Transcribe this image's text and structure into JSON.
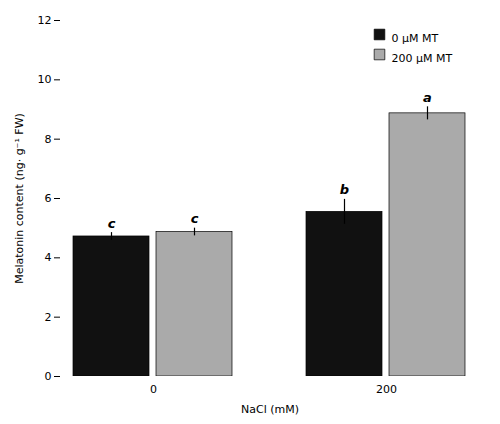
{
  "chart_data": {
    "type": "bar",
    "categories": [
      "0",
      "200"
    ],
    "series": [
      {
        "name": "0 μM MT",
        "color": "#111111",
        "values": [
          4.72,
          5.55
        ],
        "errors": [
          0.13,
          0.42
        ],
        "letters": [
          "c",
          "b"
        ]
      },
      {
        "name": "200 μM MT",
        "color": "#aaaaaa",
        "values": [
          4.87,
          8.87
        ],
        "errors": [
          0.13,
          0.22
        ],
        "letters": [
          "c",
          "a"
        ]
      }
    ],
    "xlabel": "NaCl (mM)",
    "ylabel": "Melatonin content (ng· g⁻¹ FW)",
    "ylim": [
      0,
      12
    ],
    "yticks": [
      0,
      2,
      4,
      6,
      8,
      10,
      12
    ],
    "legend": "upper right",
    "grid": false
  }
}
